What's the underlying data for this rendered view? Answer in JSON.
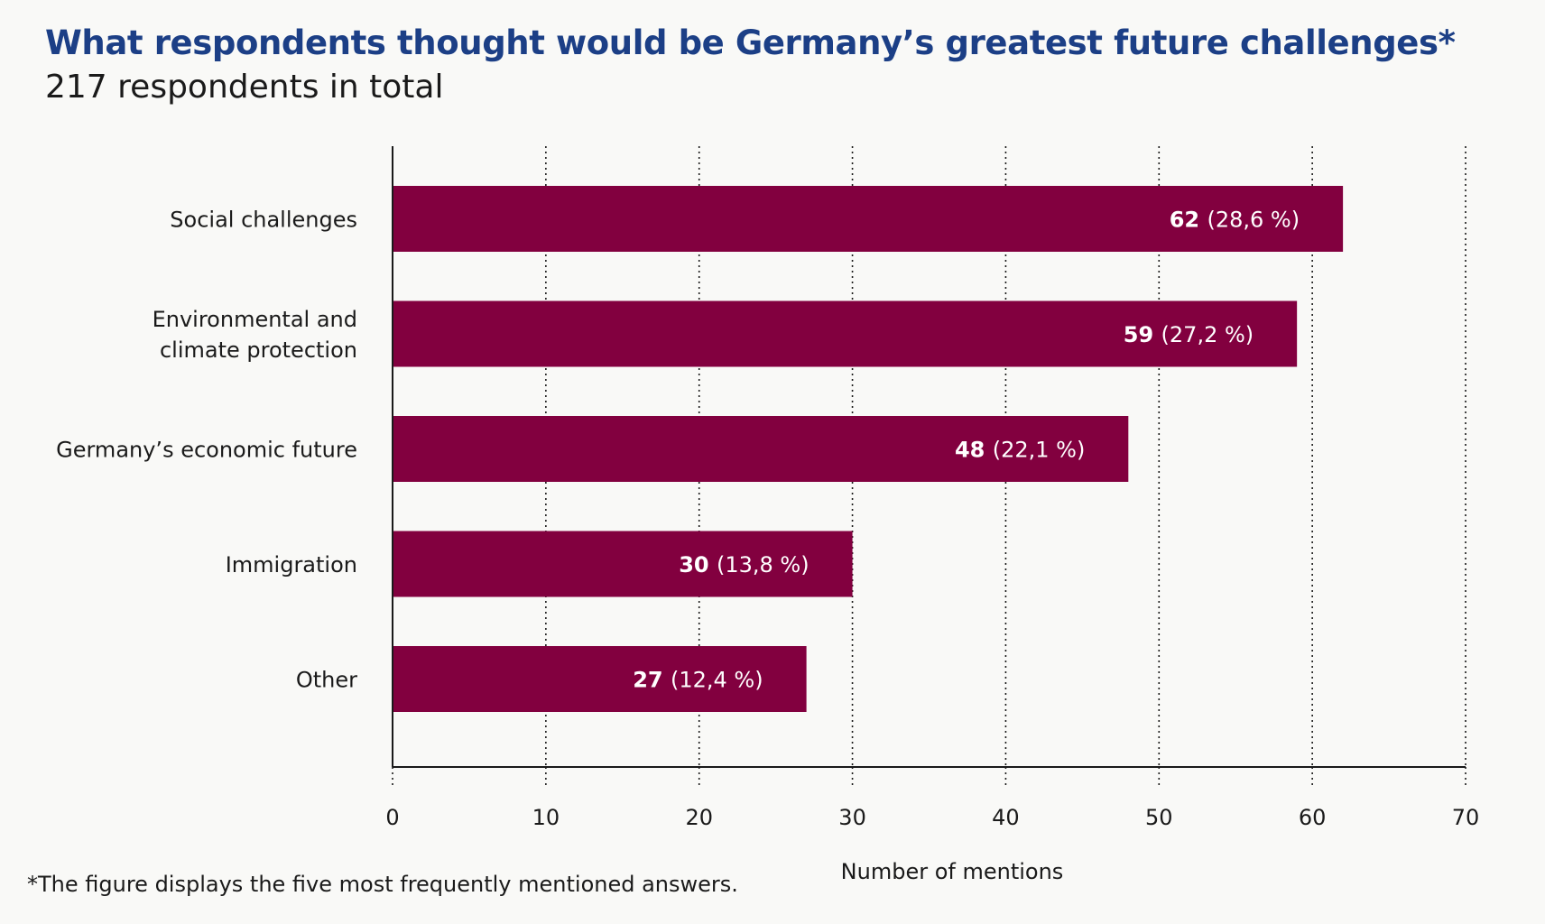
{
  "header": {
    "title": "What respondents thought would be Germany’s greatest future challenges*",
    "subtitle": "217 respondents in total"
  },
  "footnote": "*The figure displays the five most frequently mentioned answers.",
  "colors": {
    "bar": "#82003f",
    "title": "#1c3f86",
    "grid": "#1a1a1a",
    "background": "#f9f9f7"
  },
  "chart_data": {
    "type": "bar",
    "orientation": "horizontal",
    "categories": [
      [
        "Social challenges"
      ],
      [
        "Environmental and",
        "climate protection"
      ],
      [
        "Germany’s economic future"
      ],
      [
        "Immigration"
      ],
      [
        "Other"
      ]
    ],
    "values": [
      62,
      59,
      48,
      30,
      27
    ],
    "data_labels": [
      {
        "value": "62",
        "percent": "(28,6 %)"
      },
      {
        "value": "59",
        "percent": "(27,2 %)"
      },
      {
        "value": "48",
        "percent": "(22,1 %)"
      },
      {
        "value": "30",
        "percent": "(13,8 %)"
      },
      {
        "value": "27",
        "percent": "(12,4 %)"
      }
    ],
    "xlabel": "Number of mentions",
    "ylabel": "",
    "xlim": [
      0,
      70
    ],
    "xticks": [
      "0",
      "10",
      "20",
      "30",
      "40",
      "50",
      "60",
      "70"
    ],
    "grid": "vertical dotted",
    "legend": "none"
  }
}
